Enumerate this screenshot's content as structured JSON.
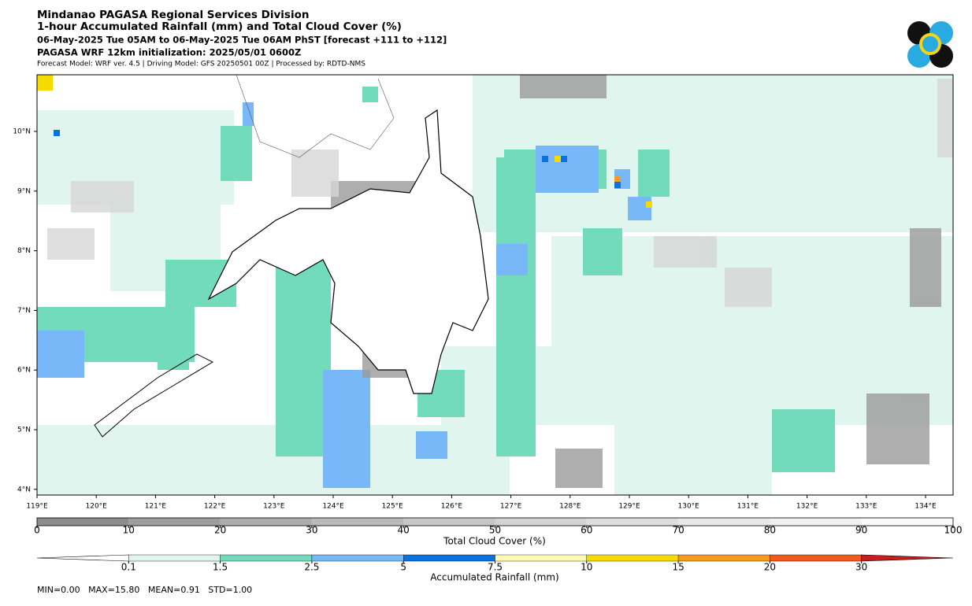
{
  "header": {
    "title": "Mindanao PAGASA Regional Services Division",
    "subtitle": "1-hour Accumulated Rainfall (mm) and Total Cloud Cover (%)",
    "period": "06-May-2025 Tue 05AM to 06-May-2025 Tue 06AM PhST [forecast +111 to +112]",
    "init": "PAGASA WRF 12km initialization: 2025/05/01 0600Z",
    "model": "Forecast Model: WRF ver. 4.5 | Driving Model: GFS 20250501 00Z | Processed by: RDTD-NMS"
  },
  "map": {
    "lat_labels": [
      "10°N",
      "9°N",
      "8°N",
      "7°N",
      "6°N",
      "5°N",
      "4°N"
    ],
    "lon_labels": [
      "119°E",
      "120°E",
      "121°E",
      "122°E",
      "123°E",
      "124°E",
      "125°E",
      "126°E",
      "127°E",
      "128°E",
      "129°E",
      "130°E",
      "131°E",
      "132°E",
      "133°E",
      "134°E"
    ]
  },
  "cloud_colorbar": {
    "label": "Total Cloud Cover (%)",
    "ticks": [
      0,
      10,
      20,
      30,
      40,
      50,
      60,
      70,
      80,
      90,
      100
    ],
    "colors": [
      "#8c8c8c",
      "#9e9e9e",
      "#adadad",
      "#bababa",
      "#c7c7c7",
      "#d3d3d3",
      "#dedede",
      "#e8e8e8",
      "#f1f1f1",
      "#fafafa"
    ]
  },
  "rain_colorbar": {
    "label": "Accumulated Rainfall (mm)",
    "ticks": [
      0.1,
      1.5,
      2.5,
      5,
      7.5,
      10,
      15,
      20,
      30
    ],
    "colors": [
      "#e0f5ee",
      "#72dbbb",
      "#78b8f8",
      "#0a72dc",
      "#fcfcb4",
      "#f5dc00",
      "#f59a23",
      "#f05a1e"
    ],
    "under_color": "#ffffff",
    "over_color": "#c81e1e"
  },
  "stats": "MIN=0.00   MAX=15.80   MEAN=0.91   STD=1.00"
}
